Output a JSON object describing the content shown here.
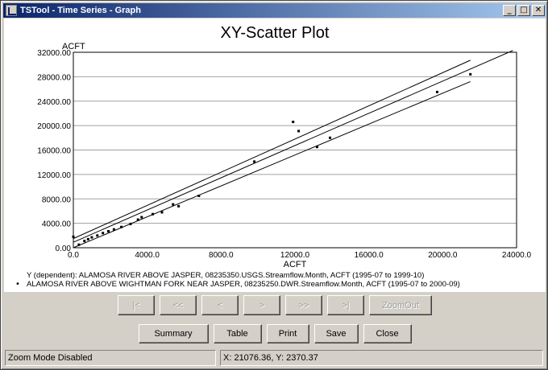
{
  "window": {
    "title": "TSTool - Time Series - Graph",
    "controls": {
      "minimize": "_",
      "maximize": "□",
      "close": "✕"
    }
  },
  "chart_data": {
    "type": "scatter",
    "title": "XY-Scatter Plot",
    "xlabel": "ACFT",
    "ylabel": "ACFT",
    "xlim": [
      0,
      24000
    ],
    "ylim": [
      0,
      32000
    ],
    "xticks": [
      "0.0",
      "4000.0",
      "8000.0",
      "12000.0",
      "16000.0",
      "20000.0",
      "24000.0"
    ],
    "yticks": [
      "0.00",
      "4000.00",
      "8000.00",
      "12000.00",
      "16000.00",
      "20000.00",
      "24000.00",
      "28000.00",
      "32000.00"
    ],
    "grid": "horizontal",
    "points": [
      {
        "x": 0,
        "y": 1800
      },
      {
        "x": 300,
        "y": 500
      },
      {
        "x": 600,
        "y": 1100
      },
      {
        "x": 800,
        "y": 1400
      },
      {
        "x": 1000,
        "y": 1700
      },
      {
        "x": 1300,
        "y": 2000
      },
      {
        "x": 1600,
        "y": 2400
      },
      {
        "x": 1900,
        "y": 2700
      },
      {
        "x": 2200,
        "y": 3000
      },
      {
        "x": 2600,
        "y": 3400
      },
      {
        "x": 3100,
        "y": 3900
      },
      {
        "x": 3500,
        "y": 4600
      },
      {
        "x": 3700,
        "y": 5000
      },
      {
        "x": 4300,
        "y": 5500
      },
      {
        "x": 4800,
        "y": 5800
      },
      {
        "x": 5400,
        "y": 7100
      },
      {
        "x": 5700,
        "y": 6800
      },
      {
        "x": 6800,
        "y": 8500
      },
      {
        "x": 9800,
        "y": 14100
      },
      {
        "x": 11900,
        "y": 20600
      },
      {
        "x": 12200,
        "y": 19100
      },
      {
        "x": 13200,
        "y": 16500
      },
      {
        "x": 13900,
        "y": 18000
      },
      {
        "x": 19700,
        "y": 25500
      },
      {
        "x": 21500,
        "y": 28400
      }
    ],
    "regression": {
      "fit": [
        [
          0,
          900
        ],
        [
          23800,
          32300
        ]
      ],
      "upper": [
        [
          0,
          1500
        ],
        [
          21500,
          30700
        ]
      ],
      "lower": [
        [
          0,
          0
        ],
        [
          21500,
          27200
        ]
      ]
    },
    "legend": {
      "y_label": "Y (dependent): ALAMOSA RIVER ABOVE JASPER, 08235350.USGS.Streamflow.Month, ACFT (1995-07 to 1999-10)",
      "x_label": "ALAMOSA RIVER ABOVE WIGHTMAN FORK NEAR JASPER, 08235250.DWR.Streamflow.Month, ACFT (1995-07 to 2000-09)",
      "marker": "•"
    }
  },
  "nav_buttons": [
    "|<",
    "<<",
    "<",
    ">",
    ">>",
    ">|",
    "ZoomOut"
  ],
  "action_buttons": {
    "summary": "Summary",
    "table": "Table",
    "print": "Print",
    "save": "Save",
    "close": "Close"
  },
  "status": {
    "mode": "Zoom Mode Disabled",
    "coords": "X:  21076.36,  Y:  2370.37"
  }
}
